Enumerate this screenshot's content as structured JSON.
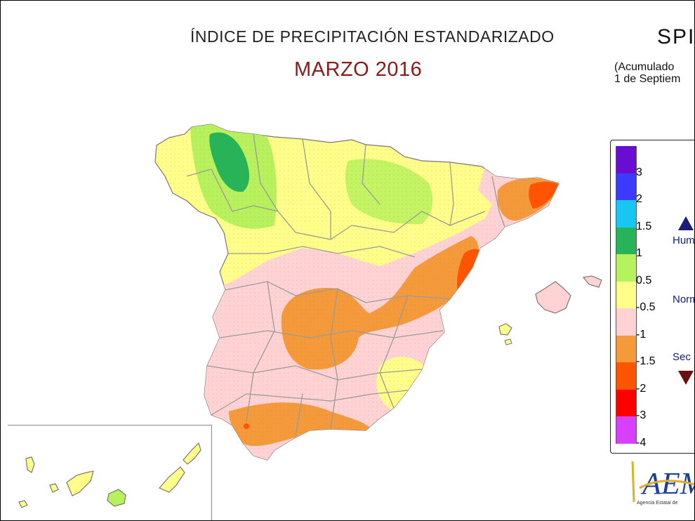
{
  "header": {
    "title": "ÍNDICE DE PRECIPITACIÓN ESTANDARIZADO",
    "month": "MARZO 2016",
    "index_code": "SPI",
    "subtitle": "(Acumulado\n1 de Septiem"
  },
  "legend": {
    "colors": [
      "#6a0dd2",
      "#3b3bff",
      "#17c6f2",
      "#27b358",
      "#b7f25c",
      "#ffff8a",
      "#ffd3d3",
      "#f59a3a",
      "#ff5500",
      "#ff0000",
      "#d740ff"
    ],
    "ticks": [
      "3",
      "2",
      "1.5",
      "1",
      "0.5",
      "-0.5",
      "-1",
      "-1.5",
      "-2",
      "-3",
      "-4"
    ],
    "categories": {
      "humid": "Hum",
      "normal": "Norm",
      "dry": "Sec"
    }
  },
  "map": {
    "region_colors": {
      "wet_strong": "#27b358",
      "wet": "#b7f25c",
      "normal": "#ffff8a",
      "dry_mild": "#ffd3d3",
      "dry": "#f59a3a",
      "dry_strong": "#ff5500",
      "border": "#999999"
    }
  },
  "logo": {
    "letters": "AEM",
    "agency": "Agencia Estatal de"
  }
}
